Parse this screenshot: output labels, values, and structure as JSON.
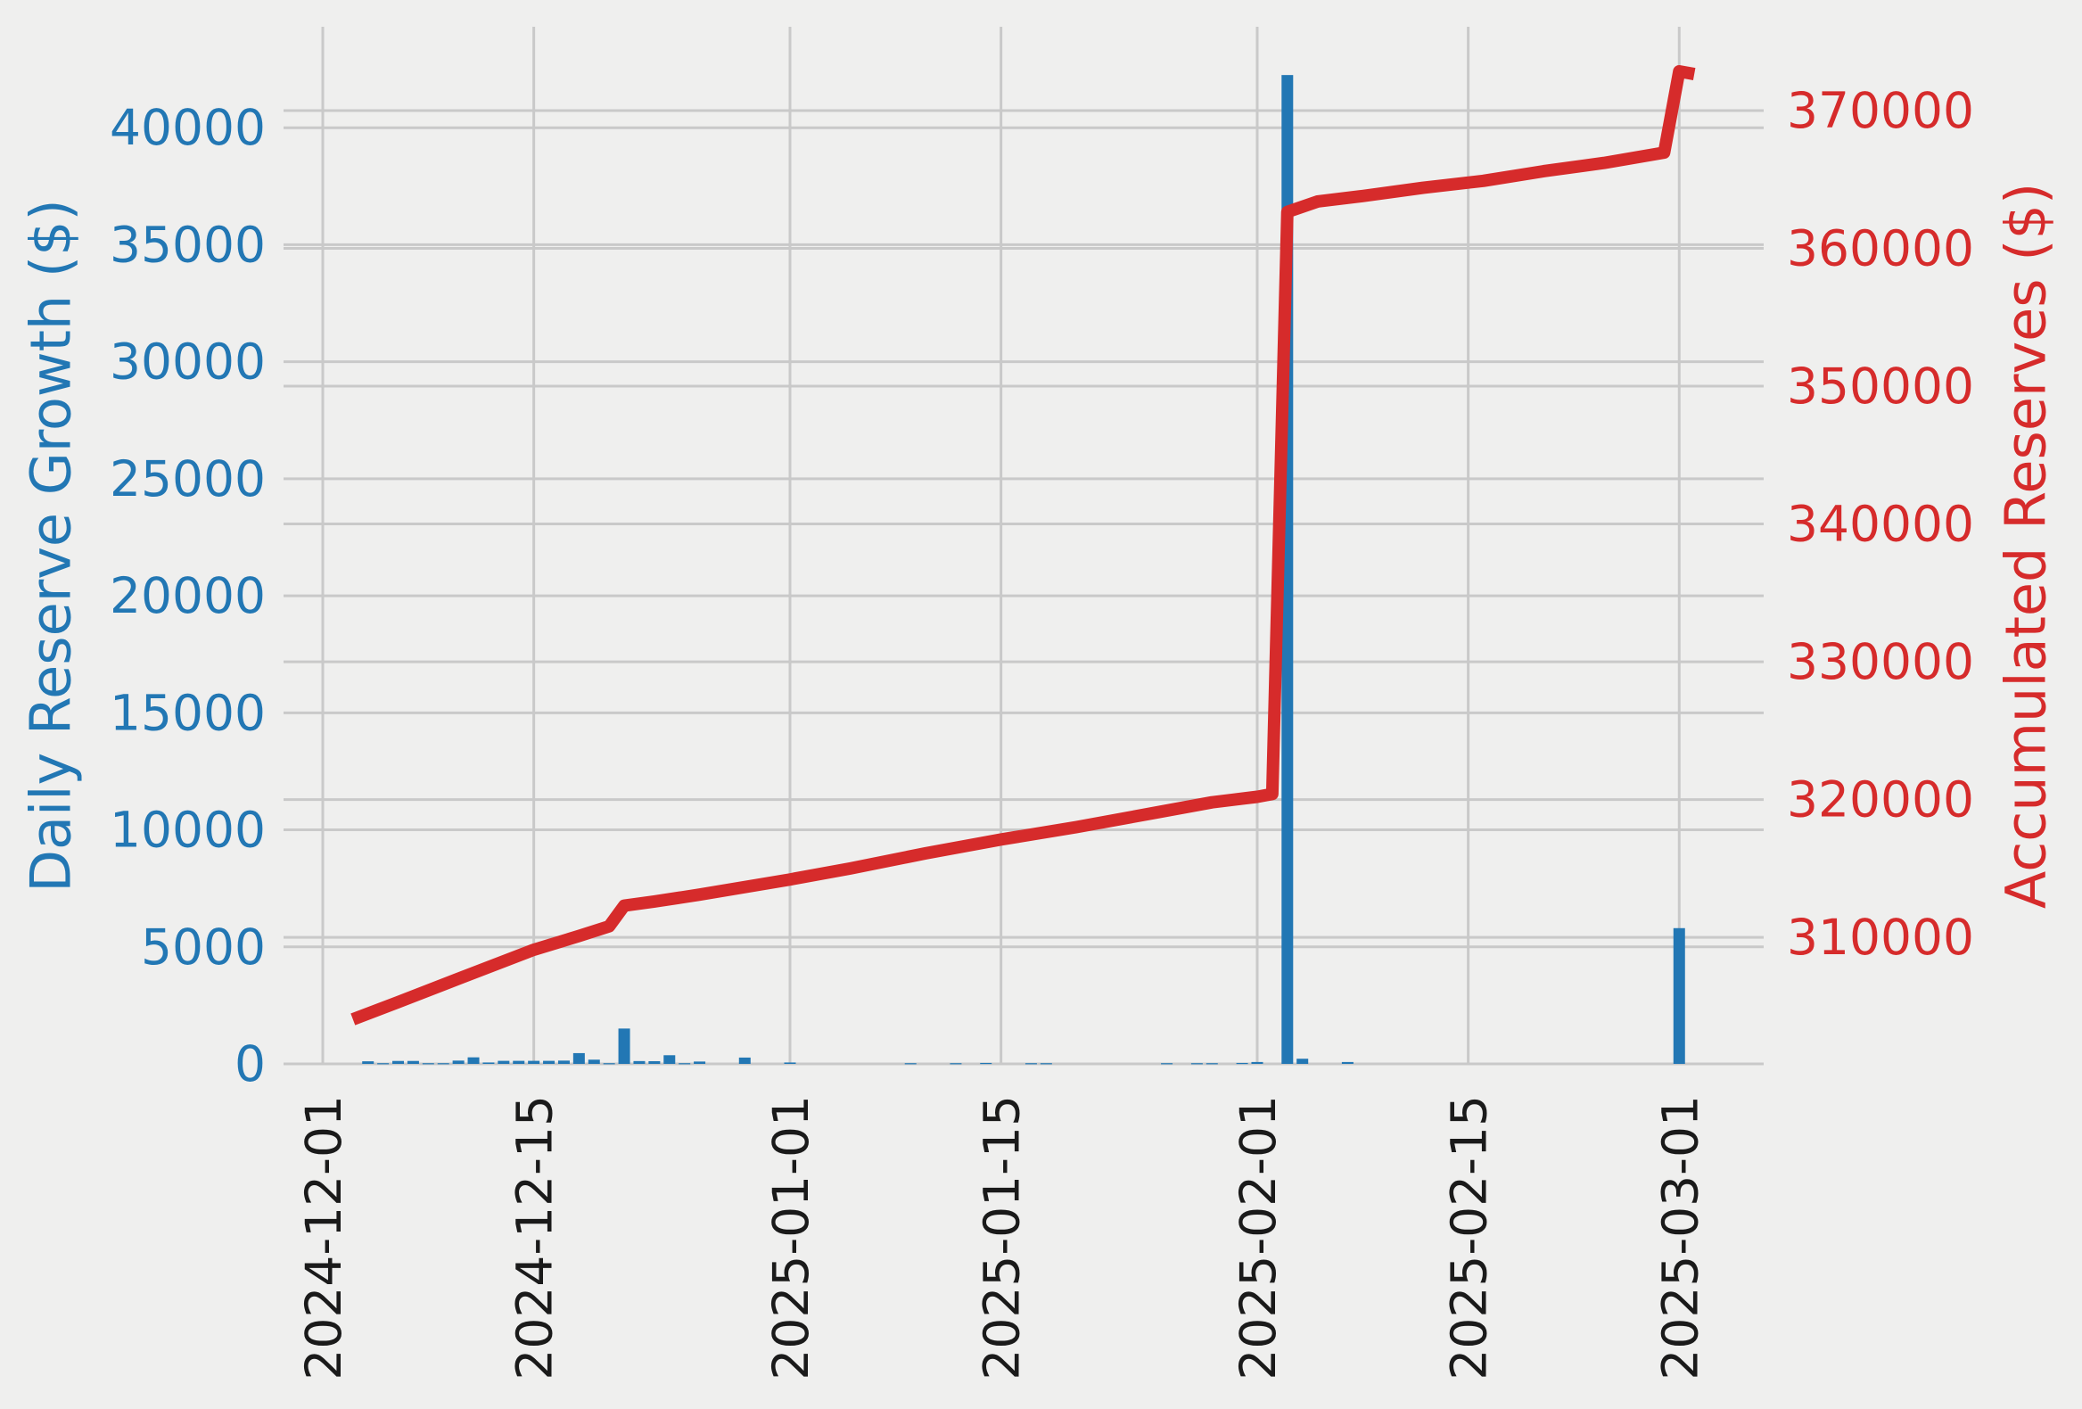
{
  "figure": {
    "background": "#efefee",
    "grid_color": "#c9c9c9",
    "x_tick_color": "#1a1a1a"
  },
  "chart_data": {
    "type": "bar",
    "subtype": "dual-axis bar + line time series",
    "title": "",
    "grid": true,
    "legend_position": "none",
    "x_ticks": [
      "2024-12-01",
      "2024-12-15",
      "2025-01-01",
      "2025-01-15",
      "2025-02-01",
      "2025-02-15",
      "2025-03-01"
    ],
    "x_range": [
      "2024-11-30",
      "2025-03-06"
    ],
    "left_axis": {
      "label": "Daily Reserve Growth ($)",
      "color": "#2277b4",
      "ticks": [
        0,
        5000,
        10000,
        15000,
        20000,
        25000,
        30000,
        35000,
        40000
      ],
      "range": [
        0,
        44300
      ]
    },
    "right_axis": {
      "label": "Accumulated Reserves ($)",
      "color": "#d62b2b",
      "ticks": [
        310000,
        320000,
        330000,
        340000,
        350000,
        360000,
        370000
      ],
      "range": [
        302000,
        376000
      ]
    },
    "series": [
      {
        "name": "Daily Reserve Growth",
        "type": "bar",
        "axis": "left",
        "color": "#2277b4",
        "points": [
          [
            "2024-12-04",
            110
          ],
          [
            "2024-12-05",
            30
          ],
          [
            "2024-12-06",
            125
          ],
          [
            "2024-12-07",
            125
          ],
          [
            "2024-12-08",
            30
          ],
          [
            "2024-12-09",
            30
          ],
          [
            "2024-12-10",
            140
          ],
          [
            "2024-12-11",
            280
          ],
          [
            "2024-12-12",
            60
          ],
          [
            "2024-12-13",
            130
          ],
          [
            "2024-12-14",
            130
          ],
          [
            "2024-12-15",
            130
          ],
          [
            "2024-12-16",
            130
          ],
          [
            "2024-12-17",
            140
          ],
          [
            "2024-12-18",
            460
          ],
          [
            "2024-12-19",
            180
          ],
          [
            "2024-12-20",
            30
          ],
          [
            "2024-12-21",
            1510
          ],
          [
            "2024-12-22",
            120
          ],
          [
            "2024-12-23",
            115
          ],
          [
            "2024-12-24",
            370
          ],
          [
            "2024-12-25",
            30
          ],
          [
            "2024-12-26",
            100
          ],
          [
            "2024-12-29",
            270
          ],
          [
            "2025-01-01",
            60
          ],
          [
            "2025-01-09",
            30
          ],
          [
            "2025-01-12",
            30
          ],
          [
            "2025-01-14",
            40
          ],
          [
            "2025-01-17",
            30
          ],
          [
            "2025-01-18",
            30
          ],
          [
            "2025-01-26",
            30
          ],
          [
            "2025-01-28",
            30
          ],
          [
            "2025-01-29",
            30
          ],
          [
            "2025-01-31",
            40
          ],
          [
            "2025-02-01",
            80
          ],
          [
            "2025-02-03",
            42250
          ],
          [
            "2025-02-04",
            220
          ],
          [
            "2025-02-07",
            80
          ],
          [
            "2025-03-01",
            5800
          ]
        ]
      },
      {
        "name": "Accumulated Reserves",
        "type": "line",
        "axis": "right",
        "color": "#d62b2b",
        "points": [
          [
            "2024-12-03",
            304050
          ],
          [
            "2024-12-06",
            305300
          ],
          [
            "2024-12-10",
            307000
          ],
          [
            "2024-12-15",
            309100
          ],
          [
            "2024-12-18",
            310100
          ],
          [
            "2024-12-20",
            310800
          ],
          [
            "2024-12-21",
            312300
          ],
          [
            "2024-12-23",
            312600
          ],
          [
            "2024-12-26",
            313100
          ],
          [
            "2025-01-01",
            314200
          ],
          [
            "2025-01-05",
            315000
          ],
          [
            "2025-01-10",
            316100
          ],
          [
            "2025-01-15",
            317100
          ],
          [
            "2025-01-20",
            318000
          ],
          [
            "2025-01-25",
            319000
          ],
          [
            "2025-01-29",
            319800
          ],
          [
            "2025-02-01",
            320200
          ],
          [
            "2025-02-02",
            320400
          ],
          [
            "2025-02-03",
            362650
          ],
          [
            "2025-02-05",
            363400
          ],
          [
            "2025-02-08",
            363800
          ],
          [
            "2025-02-12",
            364400
          ],
          [
            "2025-02-16",
            364900
          ],
          [
            "2025-02-20",
            365600
          ],
          [
            "2025-02-24",
            366200
          ],
          [
            "2025-02-28",
            366950
          ],
          [
            "2025-03-01",
            372850
          ],
          [
            "2025-03-02",
            372650
          ]
        ]
      }
    ]
  }
}
